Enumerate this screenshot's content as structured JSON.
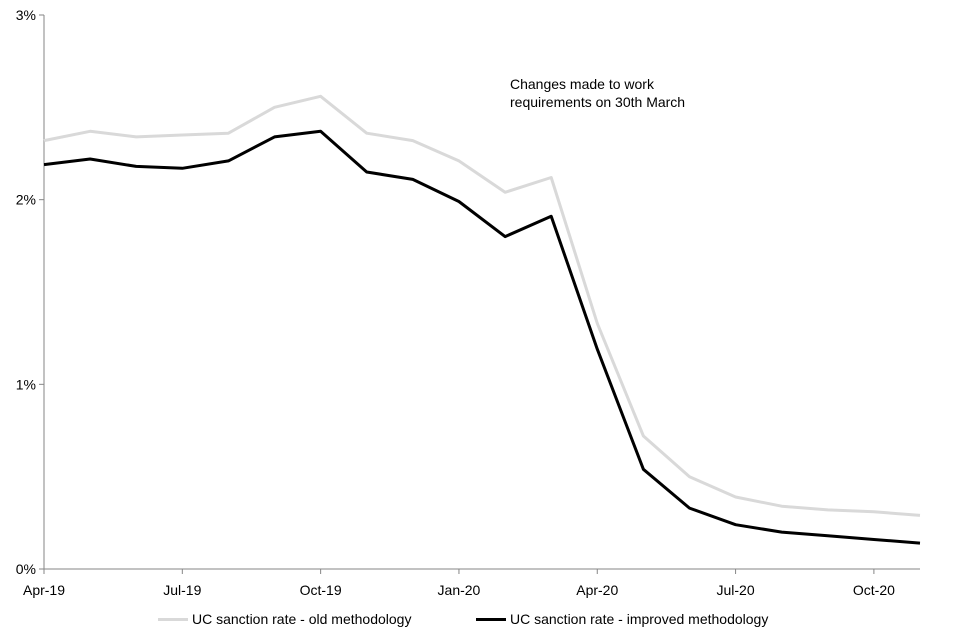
{
  "chart_data": {
    "type": "line",
    "title": "",
    "xlabel": "",
    "ylabel": "",
    "ylim": [
      0,
      3
    ],
    "y_ticks": [
      "0%",
      "1%",
      "2%",
      "3%"
    ],
    "x_tick_labels": [
      "Apr-19",
      "Jul-19",
      "Oct-19",
      "Jan-20",
      "Apr-20",
      "Jul-20",
      "Oct-20"
    ],
    "x": [
      "Apr-19",
      "May-19",
      "Jun-19",
      "Jul-19",
      "Aug-19",
      "Sep-19",
      "Oct-19",
      "Nov-19",
      "Dec-19",
      "Jan-20",
      "Feb-20",
      "Mar-20",
      "Apr-20",
      "May-20",
      "Jun-20",
      "Jul-20",
      "Aug-20",
      "Sep-20",
      "Oct-20",
      "Nov-20"
    ],
    "grid": false,
    "legend_position": "bottom",
    "annotation": [
      "Changes made to work",
      "requirements  on 30th March"
    ],
    "series": [
      {
        "name": "UC sanction rate - old methodology",
        "color": "#d9d9d9",
        "values": [
          2.32,
          2.37,
          2.34,
          2.35,
          2.36,
          2.5,
          2.56,
          2.36,
          2.32,
          2.21,
          2.04,
          2.12,
          1.33,
          0.72,
          0.5,
          0.39,
          0.34,
          0.32,
          0.31,
          0.29
        ]
      },
      {
        "name": "UC sanction rate - improved methodology",
        "color": "#000000",
        "values": [
          2.19,
          2.22,
          2.18,
          2.17,
          2.21,
          2.34,
          2.37,
          2.15,
          2.11,
          1.99,
          1.8,
          1.91,
          1.19,
          0.54,
          0.33,
          0.24,
          0.2,
          0.18,
          0.16,
          0.14
        ]
      }
    ]
  }
}
